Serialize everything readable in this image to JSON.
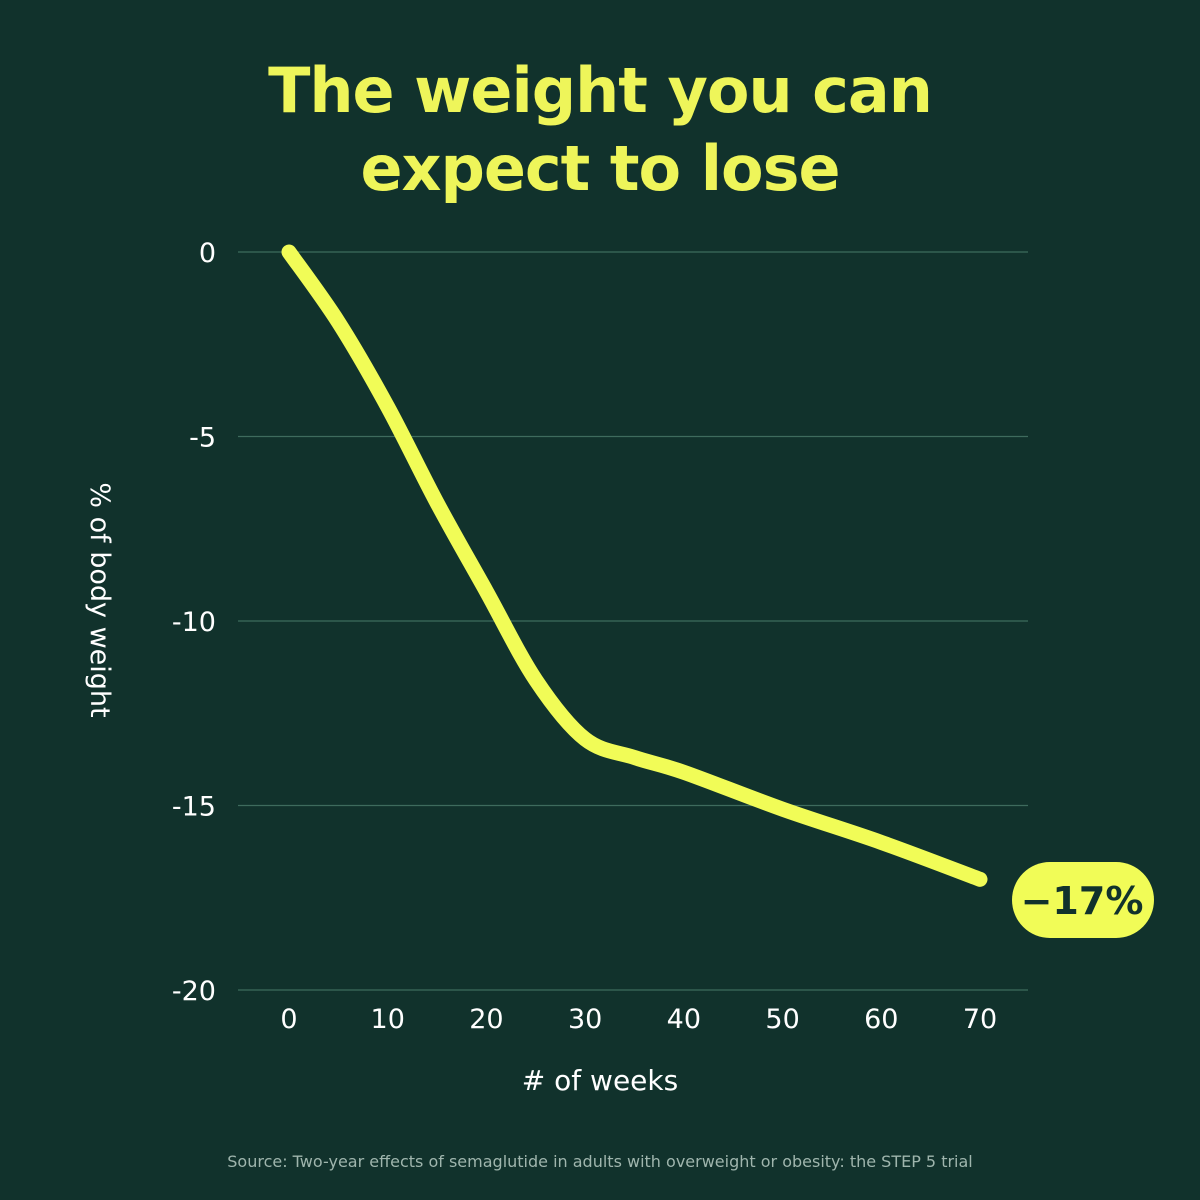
{
  "title": {
    "line1": "The weight you can",
    "line2": "expect to lose"
  },
  "source": "Source: Two-year effects of semaglutide in adults with overweight or obesity: the STEP 5 trial",
  "colors": {
    "background": "#11322c",
    "accent": "#f1fc57",
    "gridline": "#3e6b5d"
  },
  "chart_data": {
    "type": "line",
    "xlabel": "# of weeks",
    "ylabel": "% of body weight",
    "xlim": [
      0,
      70
    ],
    "ylim": [
      -20,
      0
    ],
    "x_ticks": [
      0,
      10,
      20,
      30,
      40,
      50,
      60,
      70
    ],
    "y_ticks": [
      0,
      -5,
      -10,
      -15,
      -20
    ],
    "grid": "horizontal",
    "series": [
      {
        "x": [
          0,
          5,
          10,
          15,
          20,
          25,
          30,
          35,
          40,
          50,
          60,
          70
        ],
        "y": [
          0,
          -1.9,
          -4.2,
          -6.8,
          -9.2,
          -11.6,
          -13.2,
          -13.7,
          -14.1,
          -15.1,
          -16.0,
          -17.0
        ]
      }
    ],
    "annotation": {
      "text": "−17%",
      "x": 70,
      "y": -17
    }
  }
}
